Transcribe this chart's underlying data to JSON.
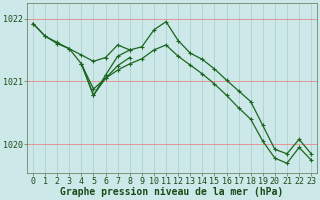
{
  "background_color": "#cce8e8",
  "grid_color_h": "#e88888",
  "grid_color_v": "#aacccc",
  "line_color": "#1a6620",
  "xlabel": "Graphe pression niveau de la mer (hPa)",
  "xlabel_fontsize": 7,
  "tick_fontsize": 6,
  "ytick_labels": [
    "1022",
    "1021",
    "1020"
  ],
  "ytick_values": [
    1022.0,
    1021.0,
    1020.0
  ],
  "ylim": [
    1019.55,
    1022.25
  ],
  "xlim": [
    -0.5,
    23.5
  ],
  "xtick_values": [
    0,
    1,
    2,
    3,
    4,
    5,
    6,
    7,
    8,
    9,
    10,
    11,
    12,
    13,
    14,
    15,
    16,
    17,
    18,
    19,
    20,
    21,
    22,
    23
  ],
  "series1": [
    [
      0,
      1021.92
    ],
    [
      1,
      1021.72
    ],
    [
      2,
      1021.6
    ],
    [
      3,
      1021.52
    ],
    [
      4,
      1021.42
    ],
    [
      5,
      1021.32
    ],
    [
      6,
      1021.38
    ],
    [
      7,
      1021.58
    ],
    [
      8,
      1021.5
    ],
    [
      9,
      1021.55
    ],
    [
      10,
      1021.82
    ],
    [
      11,
      1021.95
    ],
    [
      12,
      1021.65
    ],
    [
      13,
      1021.45
    ],
    [
      14,
      1021.35
    ],
    [
      15,
      1021.2
    ],
    [
      16,
      1021.02
    ],
    [
      17,
      1020.85
    ],
    [
      18,
      1020.68
    ],
    [
      19,
      1020.3
    ],
    [
      20,
      1019.92
    ],
    [
      21,
      1019.85
    ],
    [
      22,
      1020.08
    ],
    [
      23,
      1019.85
    ]
  ],
  "series2": [
    [
      0,
      1021.92
    ],
    [
      1,
      1021.72
    ],
    [
      2,
      1021.62
    ],
    [
      3,
      1021.52
    ],
    [
      4,
      1021.28
    ],
    [
      5,
      1020.88
    ],
    [
      6,
      1021.05
    ],
    [
      7,
      1021.18
    ],
    [
      8,
      1021.28
    ],
    [
      9,
      1021.36
    ],
    [
      10,
      1021.5
    ],
    [
      11,
      1021.58
    ],
    [
      12,
      1021.4
    ],
    [
      13,
      1021.26
    ],
    [
      14,
      1021.12
    ],
    [
      15,
      1020.96
    ],
    [
      16,
      1020.78
    ],
    [
      17,
      1020.58
    ],
    [
      18,
      1020.4
    ],
    [
      19,
      1020.05
    ],
    [
      20,
      1019.78
    ],
    [
      21,
      1019.7
    ],
    [
      22,
      1019.95
    ],
    [
      23,
      1019.75
    ]
  ],
  "series3": [
    [
      4,
      1021.28
    ],
    [
      5,
      1020.78
    ],
    [
      6,
      1021.1
    ],
    [
      7,
      1021.4
    ],
    [
      8,
      1021.5
    ]
  ],
  "series4": [
    [
      4,
      1021.28
    ],
    [
      5,
      1020.78
    ],
    [
      6,
      1021.05
    ],
    [
      7,
      1021.25
    ],
    [
      8,
      1021.38
    ]
  ]
}
